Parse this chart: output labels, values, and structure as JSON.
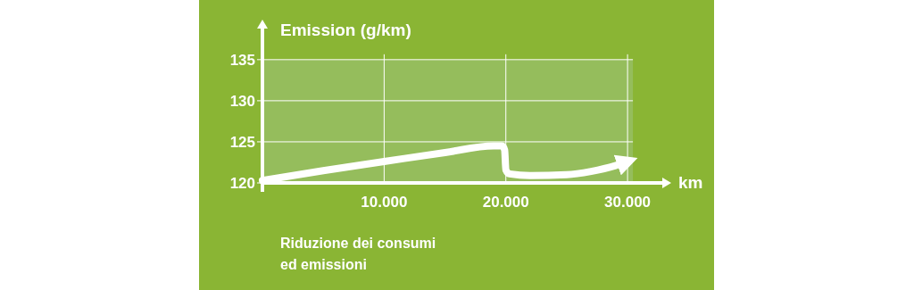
{
  "chart_data": {
    "type": "line",
    "ylabel": "Emission (g/km)",
    "xlabel": "km",
    "x": [
      0,
      5000,
      10000,
      15000,
      19000,
      19700,
      19900,
      20000,
      20300,
      22000,
      25000,
      27000,
      29000,
      30000
    ],
    "series": [
      {
        "color": "#ffffff",
        "values": [
          120.3,
          121.5,
          122.6,
          123.7,
          124.5,
          124.5,
          124,
          121.6,
          121.1,
          120.9,
          121,
          121.4,
          122.1,
          122.6
        ]
      }
    ],
    "xlim": [
      0,
      33000
    ],
    "ylim": [
      120,
      139
    ],
    "xticks": [
      {
        "value": 10000,
        "label": "10.000"
      },
      {
        "value": 20000,
        "label": "20.000"
      },
      {
        "value": 30000,
        "label": "30.000"
      }
    ],
    "yticks": [
      120,
      125,
      130,
      135
    ],
    "bands": [
      {
        "axis": "y",
        "from": 120,
        "to": 135,
        "color": "#95bd5c"
      }
    ],
    "grid": true,
    "marker": "none",
    "line_style": "solid",
    "annotations": [
      "Riduzione dei consumi ed emissioni"
    ]
  }
}
